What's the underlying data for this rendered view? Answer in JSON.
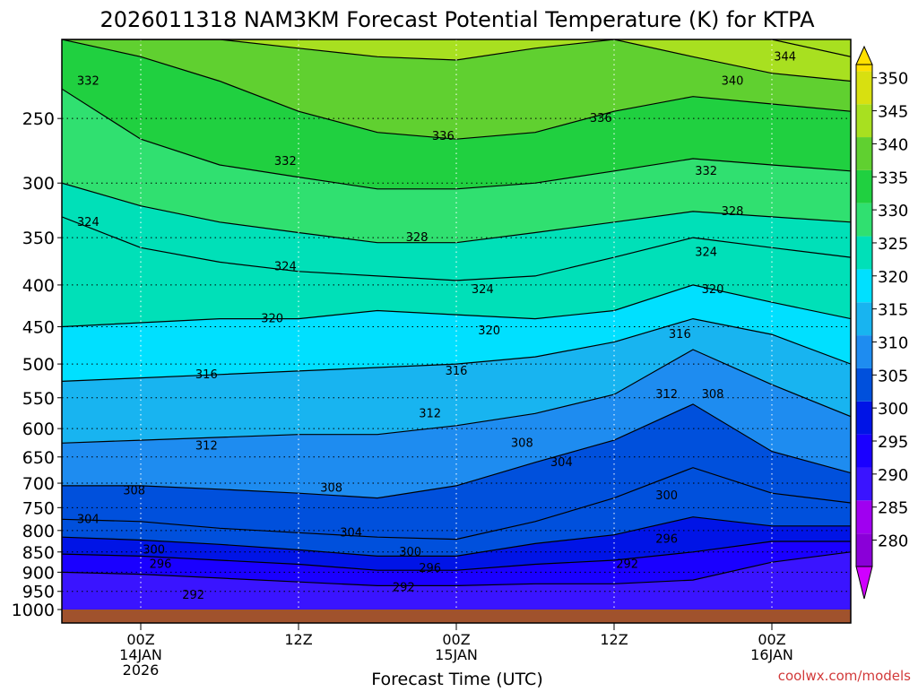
{
  "title": "2026011318 NAM3KM Forecast Potential Temperature (K) for KTPA",
  "credit": "coolwx.com/models",
  "colors": {
    "ground": "#a0522d",
    "axis": "#000000",
    "credit": "#d23a3a",
    "scale": [
      "#8a00d8",
      "#a000f0",
      "#3a14ff",
      "#1a00ff",
      "#0014e6",
      "#0050dc",
      "#1e8cf0",
      "#18b4f0",
      "#00e0ff",
      "#00e0b8",
      "#30e070",
      "#20d040",
      "#60d030",
      "#a8e020",
      "#d8e010",
      "#ffe000"
    ]
  },
  "chart_data": {
    "type": "contour",
    "title": "2026011318 NAM3KM Forecast Potential Temperature (K) for KTPA",
    "xlabel": "Forecast Time (UTC)",
    "ylabel": "",
    "x_ticks": [
      {
        "hour": 6,
        "lines": [
          "00Z",
          "14JAN",
          "2026"
        ]
      },
      {
        "hour": 18,
        "lines": [
          "12Z"
        ]
      },
      {
        "hour": 30,
        "lines": [
          "00Z",
          "15JAN"
        ]
      },
      {
        "hour": 42,
        "lines": [
          "12Z"
        ]
      },
      {
        "hour": 54,
        "lines": [
          "00Z",
          "16JAN"
        ]
      }
    ],
    "xlim": [
      0,
      60
    ],
    "y_ticks": [
      250,
      300,
      350,
      400,
      450,
      500,
      550,
      600,
      650,
      700,
      750,
      800,
      850,
      900,
      950,
      1000
    ],
    "ylim": [
      1000,
      200
    ],
    "contour_interval": 4,
    "contours": [
      {
        "level": 292,
        "pressure": [
          900,
          905,
          915,
          925,
          935,
          935,
          930,
          930,
          920,
          875,
          850
        ]
      },
      {
        "level": 296,
        "pressure": [
          855,
          860,
          870,
          880,
          895,
          895,
          880,
          870,
          850,
          825,
          825
        ]
      },
      {
        "level": 300,
        "pressure": [
          815,
          822,
          832,
          845,
          860,
          860,
          830,
          810,
          770,
          790,
          790
        ]
      },
      {
        "level": 304,
        "pressure": [
          775,
          780,
          795,
          805,
          815,
          820,
          780,
          730,
          670,
          720,
          740
        ]
      },
      {
        "level": 308,
        "pressure": [
          705,
          705,
          712,
          720,
          730,
          705,
          660,
          620,
          560,
          640,
          680
        ]
      },
      {
        "level": 312,
        "pressure": [
          625,
          620,
          615,
          610,
          610,
          595,
          575,
          545,
          480,
          530,
          580
        ]
      },
      {
        "level": 316,
        "pressure": [
          525,
          520,
          515,
          510,
          505,
          500,
          490,
          470,
          440,
          460,
          500
        ]
      },
      {
        "level": 320,
        "pressure": [
          450,
          445,
          440,
          440,
          430,
          435,
          440,
          430,
          400,
          420,
          440
        ]
      },
      {
        "level": 324,
        "pressure": [
          330,
          360,
          375,
          385,
          390,
          395,
          390,
          370,
          350,
          360,
          370
        ]
      },
      {
        "level": 328,
        "pressure": [
          300,
          320,
          335,
          345,
          355,
          355,
          345,
          335,
          325,
          330,
          335
        ]
      },
      {
        "level": 332,
        "pressure": [
          230,
          265,
          285,
          295,
          305,
          305,
          300,
          290,
          280,
          285,
          290
        ]
      },
      {
        "level": 336,
        "pressure": [
          200,
          210,
          225,
          245,
          260,
          265,
          260,
          245,
          235,
          240,
          245
        ]
      },
      {
        "level": 340,
        "pressure": [
          200,
          200,
          200,
          205,
          210,
          212,
          205,
          200,
          210,
          220,
          225
        ]
      },
      {
        "level": 344,
        "pressure": [
          200,
          200,
          200,
          200,
          200,
          200,
          200,
          200,
          195,
          200,
          210
        ]
      }
    ],
    "contour_x_hours": [
      0,
      6,
      12,
      18,
      24,
      30,
      36,
      42,
      48,
      54,
      60
    ],
    "contour_labels": [
      {
        "text": "292",
        "hour": 10,
        "pressure": 960
      },
      {
        "text": "292",
        "hour": 26,
        "pressure": 940
      },
      {
        "text": "292",
        "hour": 43,
        "pressure": 880
      },
      {
        "text": "296",
        "hour": 7.5,
        "pressure": 880
      },
      {
        "text": "296",
        "hour": 28,
        "pressure": 890
      },
      {
        "text": "296",
        "hour": 46,
        "pressure": 820
      },
      {
        "text": "300",
        "hour": 7,
        "pressure": 845
      },
      {
        "text": "300",
        "hour": 26.5,
        "pressure": 850
      },
      {
        "text": "300",
        "hour": 46,
        "pressure": 725
      },
      {
        "text": "304",
        "hour": 2,
        "pressure": 775
      },
      {
        "text": "304",
        "hour": 22,
        "pressure": 805
      },
      {
        "text": "304",
        "hour": 38,
        "pressure": 660
      },
      {
        "text": "308",
        "hour": 5.5,
        "pressure": 715
      },
      {
        "text": "308",
        "hour": 20.5,
        "pressure": 710
      },
      {
        "text": "308",
        "hour": 35,
        "pressure": 625
      },
      {
        "text": "308",
        "hour": 49.5,
        "pressure": 545
      },
      {
        "text": "312",
        "hour": 11,
        "pressure": 630
      },
      {
        "text": "312",
        "hour": 28,
        "pressure": 575
      },
      {
        "text": "312",
        "hour": 46,
        "pressure": 545
      },
      {
        "text": "316",
        "hour": 11,
        "pressure": 515
      },
      {
        "text": "316",
        "hour": 30,
        "pressure": 510
      },
      {
        "text": "316",
        "hour": 47,
        "pressure": 460
      },
      {
        "text": "320",
        "hour": 16,
        "pressure": 440
      },
      {
        "text": "320",
        "hour": 32.5,
        "pressure": 455
      },
      {
        "text": "320",
        "hour": 49.5,
        "pressure": 405
      },
      {
        "text": "324",
        "hour": 2,
        "pressure": 335
      },
      {
        "text": "324",
        "hour": 17,
        "pressure": 380
      },
      {
        "text": "324",
        "hour": 32,
        "pressure": 405
      },
      {
        "text": "324",
        "hour": 49,
        "pressure": 365
      },
      {
        "text": "328",
        "hour": 27,
        "pressure": 350
      },
      {
        "text": "328",
        "hour": 51,
        "pressure": 325
      },
      {
        "text": "332",
        "hour": 2,
        "pressure": 225
      },
      {
        "text": "332",
        "hour": 17,
        "pressure": 282
      },
      {
        "text": "332",
        "hour": 49,
        "pressure": 290
      },
      {
        "text": "336",
        "hour": 29,
        "pressure": 263
      },
      {
        "text": "336",
        "hour": 41,
        "pressure": 250
      },
      {
        "text": "340",
        "hour": 51,
        "pressure": 225
      },
      {
        "text": "344",
        "hour": 55,
        "pressure": 210
      }
    ],
    "colorbar": {
      "label_values": [
        280,
        285,
        290,
        295,
        300,
        305,
        310,
        315,
        320,
        325,
        330,
        335,
        340,
        345,
        350
      ],
      "range": [
        276,
        352
      ]
    }
  }
}
